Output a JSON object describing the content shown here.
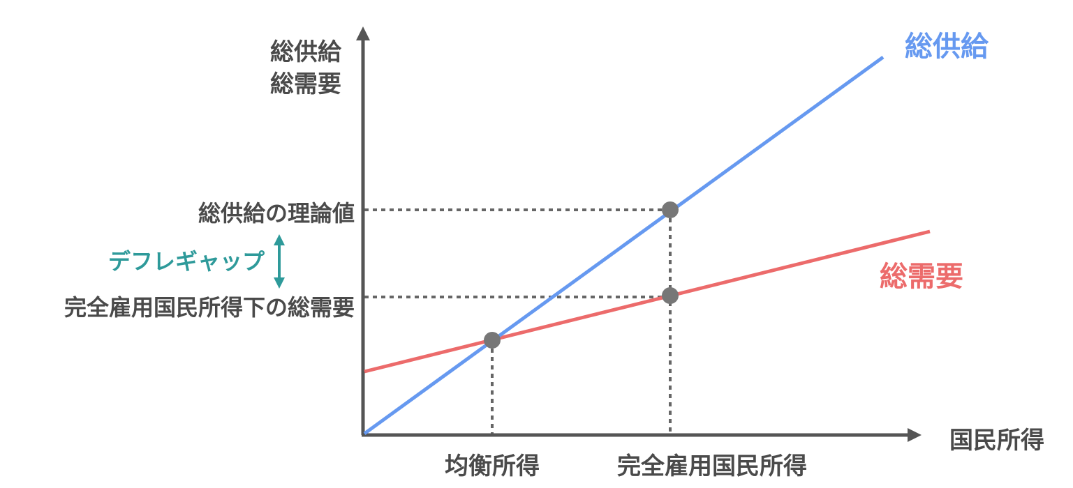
{
  "diagram": {
    "y_axis_label_line1": "総供給",
    "y_axis_label_line2": "総需要",
    "x_axis_label": "国民所得",
    "supply_curve_label": "総供給",
    "demand_curve_label": "総需要",
    "supply_level_label": "総供給の理論値",
    "demand_level_label": "完全雇用国民所得下の総需要",
    "gap_label": "デフレギャップ",
    "equilibrium_income_label": "均衡所得",
    "full_employment_income_label": "完全雇用国民所得",
    "colors": {
      "axis": "#555555",
      "supply": "#6699f0",
      "demand": "#ec6b6b",
      "gap": "#2e9a9a",
      "point": "#777777",
      "guide": "#666666",
      "text": "#4a4a4a"
    }
  }
}
